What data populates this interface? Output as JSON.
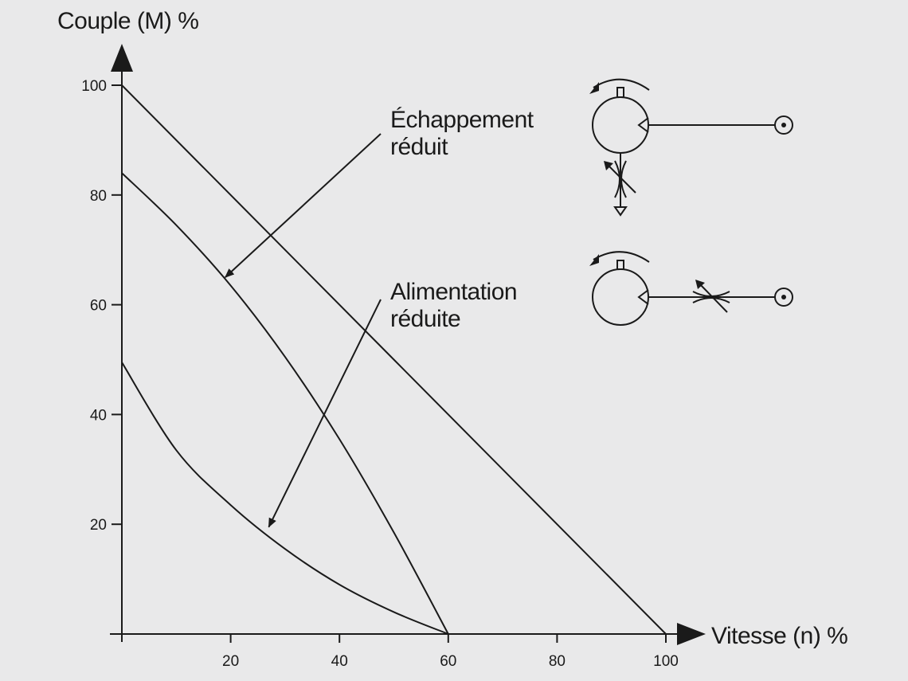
{
  "chart_data": {
    "type": "line",
    "xlabel": "Vitesse (n) %",
    "ylabel": "Couple (M) %",
    "xlim": [
      0,
      100
    ],
    "ylim": [
      0,
      100
    ],
    "x_ticks": [
      20,
      40,
      60,
      80,
      100
    ],
    "y_ticks": [
      20,
      40,
      60,
      80,
      100
    ],
    "grid": false,
    "series": [
      {
        "x": [
          0,
          100
        ],
        "y": [
          100,
          0
        ]
      },
      {
        "x": [
          0,
          10,
          20,
          30,
          40,
          50,
          60
        ],
        "y": [
          84,
          74.5,
          63.5,
          50.5,
          35.5,
          18.5,
          0
        ]
      },
      {
        "x": [
          0,
          10,
          20,
          30,
          40,
          50,
          60
        ],
        "y": [
          49.5,
          33.5,
          23.5,
          15.5,
          9,
          4,
          0
        ]
      }
    ],
    "annotations": [
      {
        "lines": [
          "Échappement",
          "réduit"
        ],
        "points_to": {
          "x": 19,
          "y": 65
        }
      },
      {
        "lines": [
          "Alimentation",
          "réduite"
        ],
        "points_to": {
          "x": 27,
          "y": 19.5
        }
      }
    ]
  },
  "accent_color": "#1a1a1a",
  "background_color": "#e9e9ea",
  "symbols": [
    {
      "name": "motor-exhaust-throttle-symbol",
      "icon": "hydraulic-motor-with-exhaust-throttle"
    },
    {
      "name": "motor-supply-throttle-symbol",
      "icon": "hydraulic-motor-with-supply-throttle"
    }
  ]
}
